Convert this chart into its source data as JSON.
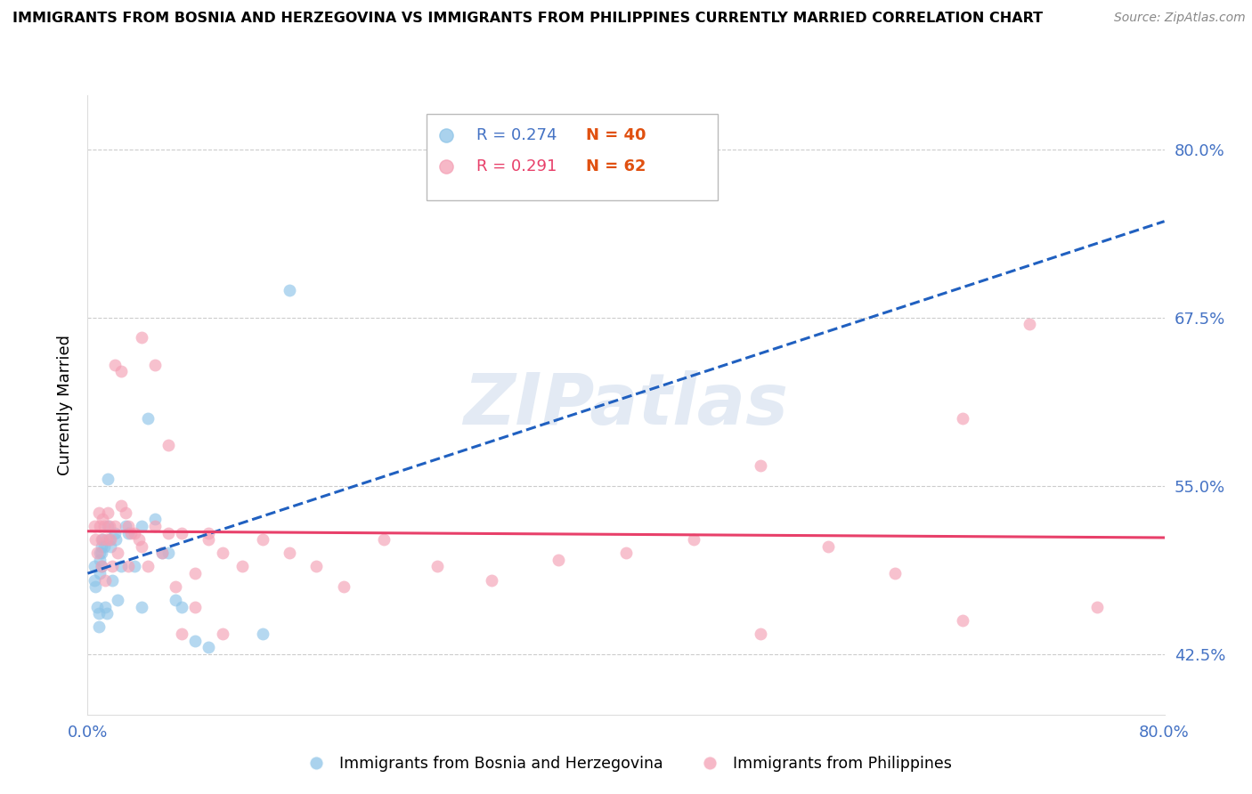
{
  "title": "IMMIGRANTS FROM BOSNIA AND HERZEGOVINA VS IMMIGRANTS FROM PHILIPPINES CURRENTLY MARRIED CORRELATION CHART",
  "source": "Source: ZipAtlas.com",
  "ylabel": "Currently Married",
  "ytick_labels": [
    "80.0%",
    "67.5%",
    "55.0%",
    "42.5%"
  ],
  "ytick_values": [
    0.8,
    0.675,
    0.55,
    0.425
  ],
  "xlim": [
    0.0,
    0.8
  ],
  "ylim": [
    0.38,
    0.84
  ],
  "legend_r1": "R = 0.274",
  "legend_n1": "N = 40",
  "legend_r2": "R = 0.291",
  "legend_n2": "N = 62",
  "color_bosnia": "#8ec4e8",
  "color_philippines": "#f4a0b5",
  "color_trendline_bosnia": "#2060c0",
  "color_trendline_philippines": "#e8406a",
  "watermark": "ZIPatlas",
  "bosnia_x": [
    0.005,
    0.005,
    0.006,
    0.007,
    0.008,
    0.008,
    0.009,
    0.009,
    0.009,
    0.01,
    0.01,
    0.01,
    0.011,
    0.012,
    0.013,
    0.014,
    0.015,
    0.015,
    0.016,
    0.017,
    0.018,
    0.02,
    0.021,
    0.022,
    0.025,
    0.028,
    0.03,
    0.035,
    0.04,
    0.04,
    0.045,
    0.05,
    0.055,
    0.06,
    0.065,
    0.07,
    0.08,
    0.09,
    0.13,
    0.15
  ],
  "bosnia_y": [
    0.49,
    0.48,
    0.475,
    0.46,
    0.455,
    0.445,
    0.5,
    0.495,
    0.485,
    0.505,
    0.5,
    0.49,
    0.51,
    0.505,
    0.46,
    0.455,
    0.555,
    0.52,
    0.51,
    0.505,
    0.48,
    0.515,
    0.51,
    0.465,
    0.49,
    0.52,
    0.515,
    0.49,
    0.52,
    0.46,
    0.6,
    0.525,
    0.5,
    0.5,
    0.465,
    0.46,
    0.435,
    0.43,
    0.44,
    0.695
  ],
  "philippines_x": [
    0.005,
    0.006,
    0.007,
    0.008,
    0.009,
    0.01,
    0.01,
    0.011,
    0.012,
    0.013,
    0.014,
    0.015,
    0.016,
    0.017,
    0.018,
    0.02,
    0.022,
    0.025,
    0.028,
    0.03,
    0.032,
    0.035,
    0.038,
    0.04,
    0.045,
    0.05,
    0.055,
    0.06,
    0.065,
    0.07,
    0.08,
    0.09,
    0.1,
    0.115,
    0.13,
    0.15,
    0.17,
    0.19,
    0.22,
    0.26,
    0.3,
    0.35,
    0.4,
    0.45,
    0.5,
    0.55,
    0.6,
    0.65,
    0.7,
    0.75,
    0.02,
    0.025,
    0.03,
    0.04,
    0.05,
    0.06,
    0.07,
    0.08,
    0.09,
    0.1,
    0.5,
    0.65
  ],
  "philippines_y": [
    0.52,
    0.51,
    0.5,
    0.53,
    0.52,
    0.49,
    0.51,
    0.525,
    0.52,
    0.48,
    0.51,
    0.53,
    0.52,
    0.51,
    0.49,
    0.52,
    0.5,
    0.535,
    0.53,
    0.49,
    0.515,
    0.515,
    0.51,
    0.505,
    0.49,
    0.52,
    0.5,
    0.515,
    0.475,
    0.515,
    0.485,
    0.515,
    0.5,
    0.49,
    0.51,
    0.5,
    0.49,
    0.475,
    0.51,
    0.49,
    0.48,
    0.495,
    0.5,
    0.51,
    0.565,
    0.505,
    0.485,
    0.6,
    0.67,
    0.46,
    0.64,
    0.635,
    0.52,
    0.66,
    0.64,
    0.58,
    0.44,
    0.46,
    0.51,
    0.44,
    0.44,
    0.45
  ]
}
